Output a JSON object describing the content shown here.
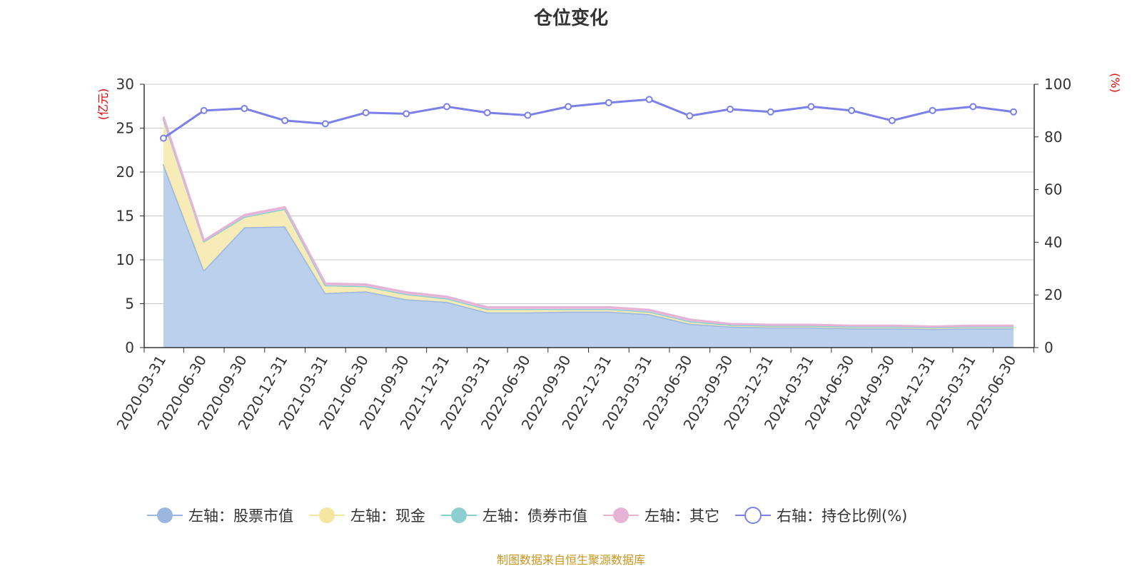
{
  "chart_data": {
    "type": "area",
    "title": "仓位变化",
    "source": "制图数据来自恒生聚源数据库",
    "left_axis": {
      "unit": "(亿元)",
      "ylim": [
        0,
        30
      ],
      "ticks": [
        0,
        5,
        10,
        15,
        20,
        25,
        30
      ]
    },
    "right_axis": {
      "unit": "(%)",
      "ylim": [
        0,
        100
      ],
      "ticks": [
        0,
        20,
        40,
        60,
        80,
        100
      ]
    },
    "grid": true,
    "legend_position": "bottom",
    "categories": [
      "2020-03-31",
      "2020-06-30",
      "2020-09-30",
      "2020-12-31",
      "2021-03-31",
      "2021-06-30",
      "2021-09-30",
      "2021-12-31",
      "2022-03-31",
      "2022-06-30",
      "2022-09-30",
      "2022-12-31",
      "2023-03-31",
      "2023-06-30",
      "2023-09-30",
      "2023-12-31",
      "2024-03-31",
      "2024-06-30",
      "2024-09-30",
      "2024-12-31",
      "2025-03-31",
      "2025-06-30"
    ],
    "series": [
      {
        "name": "左轴：股票市值",
        "axis": "left",
        "color": "#9bb7e0",
        "fill": "#b7cdeb",
        "values": [
          20.9,
          8.8,
          13.7,
          13.8,
          6.2,
          6.4,
          5.5,
          5.2,
          4.0,
          4.0,
          4.1,
          4.1,
          3.8,
          2.7,
          2.4,
          2.3,
          2.3,
          2.2,
          2.2,
          2.1,
          2.2,
          2.2
        ]
      },
      {
        "name": "左轴：现金",
        "axis": "left",
        "color": "#f5e6a0",
        "fill": "#f7ebb3",
        "values": [
          5.2,
          3.3,
          1.2,
          2.0,
          0.9,
          0.6,
          0.6,
          0.4,
          0.4,
          0.4,
          0.3,
          0.3,
          0.3,
          0.3,
          0.2,
          0.2,
          0.2,
          0.2,
          0.2,
          0.2,
          0.2,
          0.2
        ]
      },
      {
        "name": "左轴：债券市值",
        "axis": "left",
        "color": "#8ccfd0",
        "fill": "#a6dadb",
        "values": [
          0,
          0,
          0,
          0,
          0,
          0,
          0,
          0,
          0,
          0,
          0,
          0,
          0,
          0,
          0,
          0,
          0,
          0,
          0,
          0,
          0,
          0
        ]
      },
      {
        "name": "左轴：其它",
        "axis": "left",
        "color": "#e6b3d7",
        "fill": "#ecc4df",
        "values": [
          0.2,
          0.1,
          0.2,
          0.2,
          0.2,
          0.2,
          0.2,
          0.2,
          0.2,
          0.2,
          0.2,
          0.2,
          0.2,
          0.2,
          0.1,
          0.1,
          0.1,
          0.1,
          0.1,
          0.1,
          0.1,
          0.1
        ]
      },
      {
        "name": "右轴：持仓比例(%)",
        "axis": "right",
        "color": "#7b7fe8",
        "values": [
          79.5,
          90.0,
          90.8,
          86.2,
          85.0,
          89.2,
          88.8,
          91.5,
          89.2,
          88.2,
          91.5,
          93.0,
          94.2,
          88.0,
          90.5,
          89.5,
          91.5,
          90.0,
          86.2,
          90.0,
          91.5,
          89.5
        ]
      }
    ]
  }
}
